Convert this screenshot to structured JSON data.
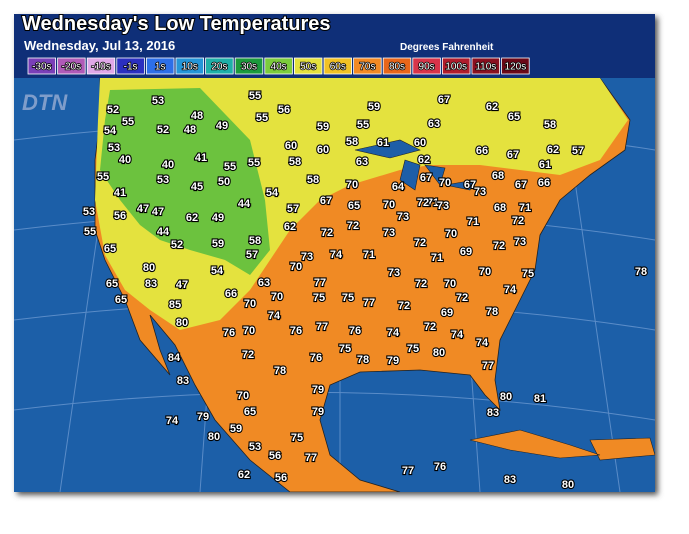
{
  "title": "Wednesday's Low Temperatures",
  "date": "Wednesday, Jul 13, 2016",
  "units": "Degrees Fahrenheit",
  "logo": "DTN",
  "legend": [
    {
      "label": "-30s",
      "color": "#7a3fb8"
    },
    {
      "label": "-20s",
      "color": "#b05ab8"
    },
    {
      "label": "-10s",
      "color": "#e0a8e8"
    },
    {
      "label": "-1s",
      "color": "#2b2fc0"
    },
    {
      "label": "1s",
      "color": "#2d6fe8"
    },
    {
      "label": "10s",
      "color": "#2596d8"
    },
    {
      "label": "20s",
      "color": "#1fb0a8"
    },
    {
      "label": "30s",
      "color": "#1c9a3c"
    },
    {
      "label": "40s",
      "color": "#7ccc3c"
    },
    {
      "label": "50s",
      "color": "#e4e23e"
    },
    {
      "label": "60s",
      "color": "#f2c224"
    },
    {
      "label": "70s",
      "color": "#f28a24"
    },
    {
      "label": "80s",
      "color": "#e8661a"
    },
    {
      "label": "90s",
      "color": "#d8344a"
    },
    {
      "label": "100s",
      "color": "#b01c2c"
    },
    {
      "label": "110s",
      "color": "#8a1020"
    },
    {
      "label": "120s",
      "color": "#6a0818"
    }
  ],
  "temps": [
    52,
    53,
    55,
    56,
    59,
    67,
    62,
    65,
    58,
    55,
    52,
    48,
    48,
    49,
    55,
    59,
    55,
    63,
    54,
    53,
    40,
    40,
    41,
    55,
    55,
    60,
    60,
    58,
    61,
    60,
    63,
    62,
    66,
    67,
    62,
    57,
    61,
    58,
    50,
    53,
    45,
    55,
    41,
    58,
    54,
    70,
    64,
    67,
    68,
    67,
    66,
    70,
    67,
    73,
    71,
    44,
    47,
    47,
    62,
    49,
    57,
    67,
    65,
    70,
    73,
    72,
    73,
    71,
    68,
    71,
    72,
    53,
    56,
    55,
    44,
    52,
    59,
    58,
    57,
    62,
    72,
    72,
    73,
    72,
    70,
    69,
    72,
    73,
    65,
    80,
    83,
    54,
    63,
    70,
    73,
    74,
    71,
    73,
    71,
    70,
    75,
    78,
    65,
    65,
    47,
    66,
    77,
    70,
    75,
    75,
    77,
    72,
    72,
    70,
    72,
    74,
    85,
    80,
    70,
    74,
    76,
    70,
    76,
    77,
    76,
    74,
    72,
    69,
    78,
    74,
    74,
    84,
    72,
    76,
    75,
    78,
    79,
    75,
    80,
    77,
    83,
    78,
    79,
    70,
    80,
    81,
    83,
    74,
    79,
    65,
    79,
    59,
    80,
    75,
    53,
    56,
    77,
    62,
    56,
    77,
    76,
    83,
    80
  ]
}
